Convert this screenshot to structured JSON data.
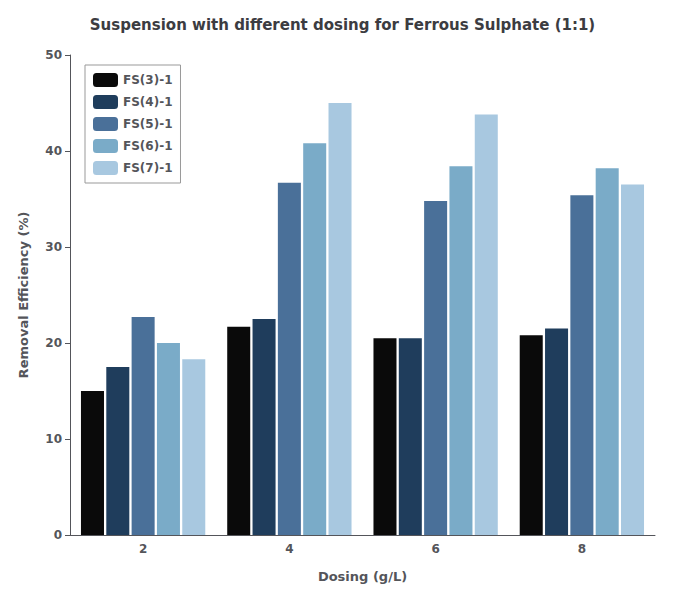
{
  "chart_data": {
    "type": "bar",
    "title": "Suspension with different dosing for Ferrous Sulphate (1:1)",
    "xlabel": "Dosing (g/L)",
    "ylabel": "Removal Efficiency (%)",
    "categories": [
      2,
      4,
      6,
      8
    ],
    "series": [
      {
        "name": "FS(3)-1",
        "color": "#0a0a0a",
        "values": [
          15.0,
          21.7,
          20.5,
          20.8
        ]
      },
      {
        "name": "FS(4)-1",
        "color": "#1f3d5c",
        "values": [
          17.5,
          22.5,
          20.5,
          21.5
        ]
      },
      {
        "name": "FS(5)-1",
        "color": "#4a7099",
        "values": [
          22.7,
          36.7,
          34.8,
          35.4
        ]
      },
      {
        "name": "FS(6)-1",
        "color": "#7aabc8",
        "values": [
          20.0,
          40.8,
          38.4,
          38.2
        ]
      },
      {
        "name": "FS(7)-1",
        "color": "#a8c8e0",
        "values": [
          18.3,
          45.0,
          43.8,
          36.5
        ]
      }
    ],
    "ylim": [
      0,
      50
    ],
    "yticks": [
      0,
      10,
      20,
      30,
      40,
      50
    ],
    "grid": false,
    "legend": "upper left"
  }
}
